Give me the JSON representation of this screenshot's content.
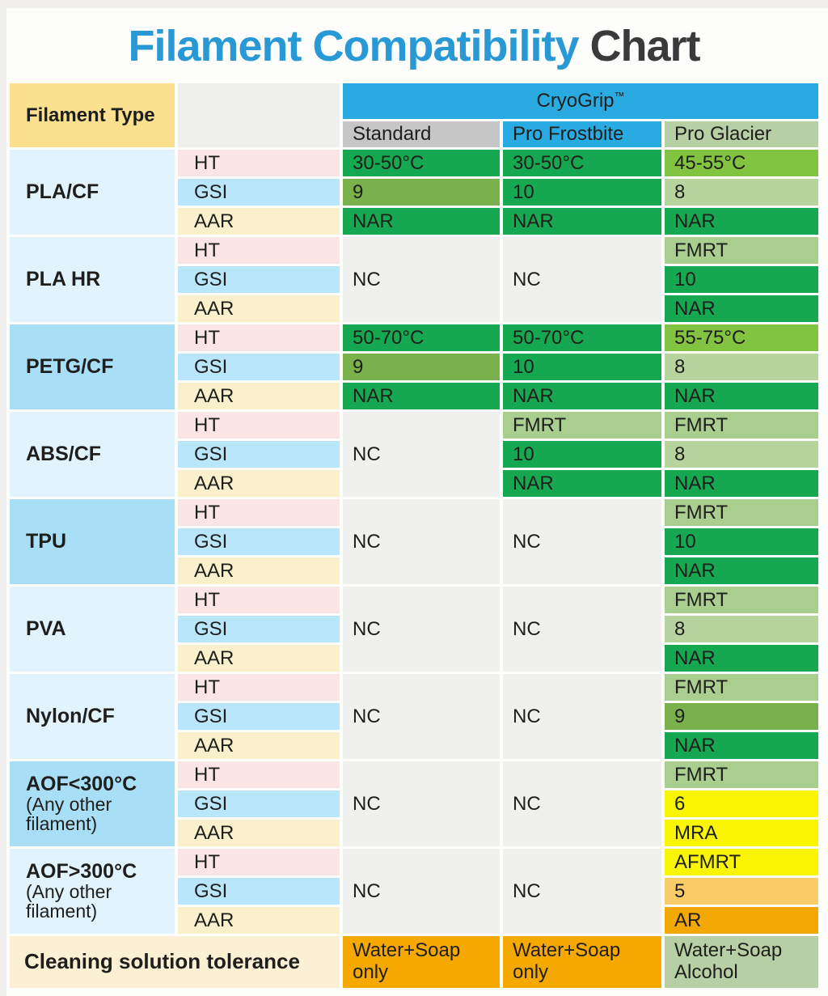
{
  "title": {
    "part1": "Filament Compatibility",
    "part2": "Chart"
  },
  "colors": {
    "title_blue": "#2999D6",
    "title_dark": "#3A3A3C",
    "accent_blue": "#29ABE2",
    "header_gray": "#C6C6C6",
    "header_yellow": "#FAE08F",
    "empty_gray": "#EFEFED",
    "nc_gray": "#F0F0EE",
    "filament_light": "#E1F3FC",
    "filament_dark": "#A9DFF6",
    "ht_pink": "#FBE5E5",
    "gsi_cyan": "#B9E6FA",
    "aar_cream": "#FAF0CC",
    "green": "#16A751",
    "olive": "#7AB14D",
    "lime": "#82C342",
    "lightgreen": "#A9CE90",
    "palegreen": "#B7D49E",
    "yellow": "#FAF500",
    "amber_light": "#FACC68",
    "amber": "#F3A804",
    "footer_cream": "#FBF0D3",
    "footer_orange": "#F5A800",
    "footer_sage": "#B7CFA5",
    "text": "#1E1E1C"
  },
  "chart_data": {
    "type": "table",
    "title": "Filament Compatibility Chart",
    "corner_header": "Filament Type",
    "brand": "CryoGrip",
    "brand_tm": "™",
    "product_columns": [
      "Standard",
      "Pro Frostbite",
      "Pro Glacier"
    ],
    "metric_labels": [
      "HT",
      "GSI",
      "AAR"
    ],
    "rows": [
      {
        "filament": "PLA/CF",
        "note": "",
        "shade": "light",
        "standard": {
          "merged": false,
          "cells": [
            {
              "text": "30-50°C",
              "bg": "green"
            },
            {
              "text": "9",
              "bg": "olive"
            },
            {
              "text": "NAR",
              "bg": "green"
            }
          ]
        },
        "frostbite": {
          "merged": false,
          "cells": [
            {
              "text": "30-50°C",
              "bg": "green"
            },
            {
              "text": "10",
              "bg": "green"
            },
            {
              "text": "NAR",
              "bg": "green"
            }
          ]
        },
        "glacier": {
          "merged": false,
          "cells": [
            {
              "text": "45-55°C",
              "bg": "lime"
            },
            {
              "text": "8",
              "bg": "palegreen"
            },
            {
              "text": "NAR",
              "bg": "green"
            }
          ]
        }
      },
      {
        "filament": "PLA HR",
        "note": "",
        "shade": "light",
        "standard": {
          "merged": true,
          "text": "NC",
          "bg": "nc_gray"
        },
        "frostbite": {
          "merged": true,
          "text": "NC",
          "bg": "nc_gray"
        },
        "glacier": {
          "merged": false,
          "cells": [
            {
              "text": "FMRT",
              "bg": "lightgreen"
            },
            {
              "text": "10",
              "bg": "green"
            },
            {
              "text": "NAR",
              "bg": "green"
            }
          ]
        }
      },
      {
        "filament": "PETG/CF",
        "note": "",
        "shade": "dark",
        "standard": {
          "merged": false,
          "cells": [
            {
              "text": "50-70°C",
              "bg": "green"
            },
            {
              "text": "9",
              "bg": "olive"
            },
            {
              "text": "NAR",
              "bg": "green"
            }
          ]
        },
        "frostbite": {
          "merged": false,
          "cells": [
            {
              "text": "50-70°C",
              "bg": "green"
            },
            {
              "text": "10",
              "bg": "green"
            },
            {
              "text": "NAR",
              "bg": "green"
            }
          ]
        },
        "glacier": {
          "merged": false,
          "cells": [
            {
              "text": "55-75°C",
              "bg": "lime"
            },
            {
              "text": "8",
              "bg": "palegreen"
            },
            {
              "text": "NAR",
              "bg": "green"
            }
          ]
        }
      },
      {
        "filament": "ABS/CF",
        "note": "",
        "shade": "light",
        "standard": {
          "merged": true,
          "text": "NC",
          "bg": "nc_gray"
        },
        "frostbite": {
          "merged": false,
          "cells": [
            {
              "text": "FMRT",
              "bg": "lightgreen"
            },
            {
              "text": "10",
              "bg": "green"
            },
            {
              "text": "NAR",
              "bg": "green"
            }
          ]
        },
        "glacier": {
          "merged": false,
          "cells": [
            {
              "text": "FMRT",
              "bg": "lightgreen"
            },
            {
              "text": "8",
              "bg": "palegreen"
            },
            {
              "text": "NAR",
              "bg": "green"
            }
          ]
        }
      },
      {
        "filament": "TPU",
        "note": "",
        "shade": "dark",
        "standard": {
          "merged": true,
          "text": "NC",
          "bg": "nc_gray"
        },
        "frostbite": {
          "merged": true,
          "text": "NC",
          "bg": "nc_gray"
        },
        "glacier": {
          "merged": false,
          "cells": [
            {
              "text": "FMRT",
              "bg": "lightgreen"
            },
            {
              "text": "10",
              "bg": "green"
            },
            {
              "text": "NAR",
              "bg": "green"
            }
          ]
        }
      },
      {
        "filament": "PVA",
        "note": "",
        "shade": "light",
        "standard": {
          "merged": true,
          "text": "NC",
          "bg": "nc_gray"
        },
        "frostbite": {
          "merged": true,
          "text": "NC",
          "bg": "nc_gray"
        },
        "glacier": {
          "merged": false,
          "cells": [
            {
              "text": "FMRT",
              "bg": "lightgreen"
            },
            {
              "text": "8",
              "bg": "palegreen"
            },
            {
              "text": "NAR",
              "bg": "green"
            }
          ]
        }
      },
      {
        "filament": "Nylon/CF",
        "note": "",
        "shade": "light",
        "standard": {
          "merged": true,
          "text": "NC",
          "bg": "nc_gray"
        },
        "frostbite": {
          "merged": true,
          "text": "NC",
          "bg": "nc_gray"
        },
        "glacier": {
          "merged": false,
          "cells": [
            {
              "text": "FMRT",
              "bg": "lightgreen"
            },
            {
              "text": "9",
              "bg": "olive"
            },
            {
              "text": "NAR",
              "bg": "green"
            }
          ]
        }
      },
      {
        "filament": "AOF<300°C",
        "note": "(Any other filament)",
        "shade": "dark",
        "standard": {
          "merged": true,
          "text": "NC",
          "bg": "nc_gray"
        },
        "frostbite": {
          "merged": true,
          "text": "NC",
          "bg": "nc_gray"
        },
        "glacier": {
          "merged": false,
          "cells": [
            {
              "text": "FMRT",
              "bg": "lightgreen"
            },
            {
              "text": "6",
              "bg": "yellow"
            },
            {
              "text": "MRA",
              "bg": "yellow"
            }
          ]
        }
      },
      {
        "filament": "AOF>300°C",
        "note": "(Any other filament)",
        "shade": "light",
        "standard": {
          "merged": true,
          "text": "NC",
          "bg": "nc_gray"
        },
        "frostbite": {
          "merged": true,
          "text": "NC",
          "bg": "nc_gray"
        },
        "glacier": {
          "merged": false,
          "cells": [
            {
              "text": "AFMRT",
              "bg": "yellow"
            },
            {
              "text": "5",
              "bg": "amber_light"
            },
            {
              "text": "AR",
              "bg": "amber"
            }
          ]
        }
      }
    ],
    "footer": {
      "label": "Cleaning solution tolerance",
      "values": [
        {
          "text": "Water+Soap\nonly",
          "bg": "footer_orange"
        },
        {
          "text": "Water+Soap\nonly",
          "bg": "footer_orange"
        },
        {
          "text": "Water+Soap\nAlcohol",
          "bg": "footer_sage"
        }
      ]
    }
  }
}
